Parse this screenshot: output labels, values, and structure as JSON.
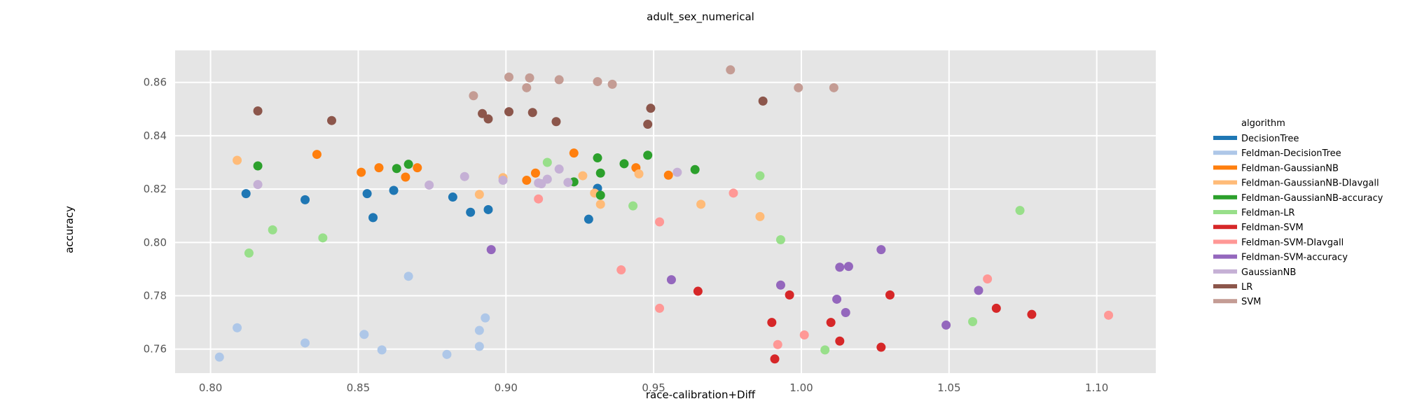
{
  "chart_data": {
    "type": "scatter",
    "title": "adult_sex_numerical",
    "xlabel": "race-calibration+Diff",
    "ylabel": "accuracy",
    "xlim": [
      0.788,
      1.12
    ],
    "ylim": [
      0.751,
      0.872
    ],
    "xticks": [
      0.8,
      0.85,
      0.9,
      0.95,
      1.0,
      1.05,
      1.1
    ],
    "xtick_labels": [
      "0.80",
      "0.85",
      "0.90",
      "0.95",
      "1.00",
      "1.05",
      "1.10"
    ],
    "yticks": [
      0.76,
      0.78,
      0.8,
      0.82,
      0.84,
      0.86
    ],
    "ytick_labels": [
      "0.76",
      "0.78",
      "0.80",
      "0.82",
      "0.84",
      "0.86"
    ],
    "grid": true,
    "background": "#e5e5e5",
    "legend_title": "algorithm",
    "legend_position": "right",
    "series": [
      {
        "name": "DecisionTree",
        "color": "#1f77b4",
        "x": [
          0.812,
          0.832,
          0.853,
          0.855,
          0.862,
          0.882,
          0.888,
          0.894,
          0.928,
          0.931
        ],
        "y": [
          0.8183,
          0.816,
          0.8183,
          0.8093,
          0.8195,
          0.817,
          0.8113,
          0.8123,
          0.8087,
          0.8203
        ]
      },
      {
        "name": "Feldman-DecisionTree",
        "color": "#aec7e8",
        "x": [
          0.803,
          0.809,
          0.832,
          0.852,
          0.858,
          0.867,
          0.88,
          0.891,
          0.891,
          0.893
        ],
        "y": [
          0.757,
          0.768,
          0.7623,
          0.7655,
          0.7597,
          0.7873,
          0.758,
          0.761,
          0.767,
          0.7717
        ]
      },
      {
        "name": "Feldman-GaussianNB",
        "color": "#ff7f0e",
        "x": [
          0.836,
          0.851,
          0.857,
          0.866,
          0.87,
          0.907,
          0.91,
          0.923,
          0.944,
          0.955
        ],
        "y": [
          0.833,
          0.8263,
          0.828,
          0.8245,
          0.828,
          0.8233,
          0.826,
          0.8335,
          0.828,
          0.8252
        ]
      },
      {
        "name": "Feldman-GaussianNB-DIavgall",
        "color": "#ffbb78",
        "x": [
          0.809,
          0.891,
          0.899,
          0.926,
          0.93,
          0.932,
          0.945,
          0.966,
          0.986
        ],
        "y": [
          0.8308,
          0.818,
          0.8243,
          0.825,
          0.8185,
          0.8143,
          0.8257,
          0.8143,
          0.8097
        ]
      },
      {
        "name": "Feldman-GaussianNB-accuracy",
        "color": "#2ca02c",
        "x": [
          0.816,
          0.863,
          0.867,
          0.923,
          0.931,
          0.932,
          0.932,
          0.94,
          0.948,
          0.964
        ],
        "y": [
          0.8287,
          0.8277,
          0.8293,
          0.8227,
          0.8317,
          0.826,
          0.8177,
          0.8295,
          0.8327,
          0.8273
        ]
      },
      {
        "name": "Feldman-LR",
        "color": "#98df8a",
        "x": [
          0.813,
          0.821,
          0.838,
          0.914,
          0.943,
          0.986,
          0.993,
          1.008,
          1.058,
          1.074
        ],
        "y": [
          0.796,
          0.8047,
          0.8017,
          0.83,
          0.8137,
          0.825,
          0.801,
          0.7597,
          0.7703,
          0.812
        ]
      },
      {
        "name": "Feldman-SVM",
        "color": "#d62728",
        "x": [
          0.965,
          0.99,
          0.991,
          0.996,
          1.01,
          1.013,
          1.027,
          1.03,
          1.066,
          1.078
        ],
        "y": [
          0.7817,
          0.77,
          0.7563,
          0.7803,
          0.77,
          0.763,
          0.7607,
          0.7803,
          0.7753,
          0.773
        ]
      },
      {
        "name": "Feldman-SVM-DIavgall",
        "color": "#ff9896",
        "x": [
          0.911,
          0.939,
          0.952,
          0.952,
          0.977,
          0.992,
          1.001,
          1.063,
          1.104
        ],
        "y": [
          0.8163,
          0.7897,
          0.8077,
          0.7753,
          0.8185,
          0.7617,
          0.7653,
          0.7863,
          0.7727
        ]
      },
      {
        "name": "Feldman-SVM-accuracy",
        "color": "#9467bd",
        "x": [
          0.895,
          0.956,
          0.993,
          1.012,
          1.013,
          1.015,
          1.016,
          1.027,
          1.049,
          1.06
        ],
        "y": [
          0.7973,
          0.786,
          0.784,
          0.7787,
          0.7907,
          0.7737,
          0.791,
          0.7973,
          0.769,
          0.782
        ]
      },
      {
        "name": "GaussianNB",
        "color": "#c5b0d5",
        "x": [
          0.816,
          0.874,
          0.886,
          0.899,
          0.911,
          0.912,
          0.914,
          0.918,
          0.921,
          0.958
        ],
        "y": [
          0.8217,
          0.8215,
          0.8247,
          0.8233,
          0.8223,
          0.822,
          0.8237,
          0.8275,
          0.8225,
          0.8263
        ]
      },
      {
        "name": "LR",
        "color": "#8c564b",
        "x": [
          0.816,
          0.841,
          0.892,
          0.894,
          0.901,
          0.909,
          0.917,
          0.948,
          0.949,
          0.987
        ],
        "y": [
          0.8493,
          0.8457,
          0.8483,
          0.8463,
          0.849,
          0.8487,
          0.8453,
          0.8443,
          0.8503,
          0.853
        ]
      },
      {
        "name": "SVM",
        "color": "#c49c94",
        "x": [
          0.889,
          0.901,
          0.907,
          0.908,
          0.918,
          0.931,
          0.936,
          0.976,
          0.999,
          1.011
        ],
        "y": [
          0.855,
          0.862,
          0.858,
          0.8617,
          0.861,
          0.8603,
          0.8593,
          0.8647,
          0.858,
          0.858
        ]
      }
    ]
  }
}
